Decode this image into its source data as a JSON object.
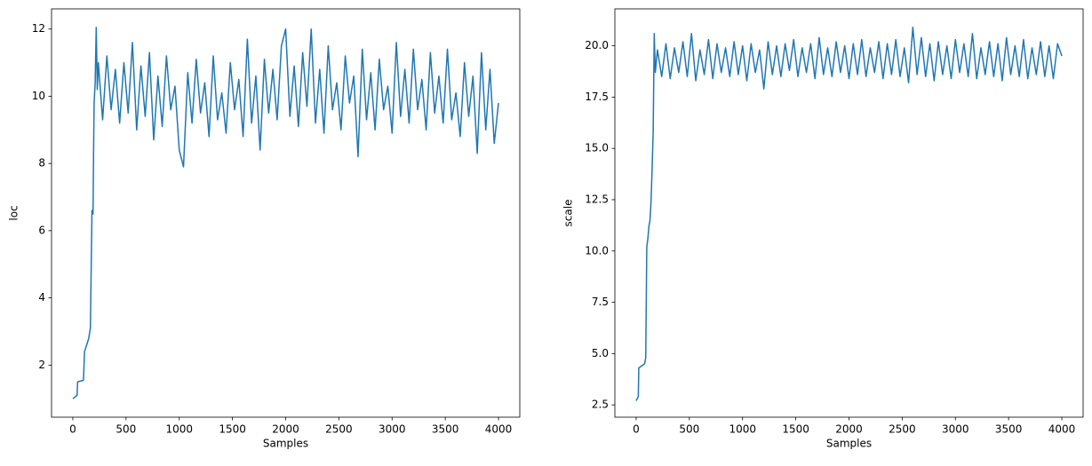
{
  "chart_data": [
    {
      "type": "line",
      "x_label": "Samples",
      "y_label": "loc",
      "xlim": [
        -200,
        4200
      ],
      "ylim": [
        0.45,
        12.6
      ],
      "xticks": [
        0,
        500,
        1000,
        1500,
        2000,
        2500,
        3000,
        3500,
        4000
      ],
      "yticks": [
        2,
        4,
        6,
        8,
        10,
        12
      ],
      "color": "#1f77b4",
      "x": [
        0,
        20,
        40,
        45,
        100,
        110,
        130,
        150,
        165,
        180,
        190,
        195,
        200,
        210,
        220,
        230,
        240,
        280,
        320,
        360,
        400,
        440,
        480,
        520,
        560,
        600,
        640,
        680,
        720,
        760,
        800,
        840,
        880,
        920,
        960,
        1000,
        1040,
        1080,
        1120,
        1160,
        1200,
        1240,
        1280,
        1320,
        1360,
        1400,
        1440,
        1480,
        1520,
        1560,
        1600,
        1640,
        1680,
        1720,
        1760,
        1800,
        1840,
        1880,
        1920,
        1960,
        2000,
        2040,
        2080,
        2120,
        2160,
        2200,
        2240,
        2280,
        2320,
        2360,
        2400,
        2440,
        2480,
        2520,
        2560,
        2600,
        2640,
        2680,
        2720,
        2760,
        2800,
        2840,
        2880,
        2920,
        2960,
        3000,
        3040,
        3080,
        3120,
        3160,
        3200,
        3240,
        3280,
        3320,
        3360,
        3400,
        3440,
        3480,
        3520,
        3560,
        3600,
        3640,
        3680,
        3720,
        3760,
        3800,
        3840,
        3880,
        3920,
        3960,
        4000
      ],
      "values": [
        1.0,
        1.05,
        1.1,
        1.5,
        1.55,
        2.4,
        2.6,
        2.8,
        3.1,
        6.6,
        6.5,
        8.3,
        9.8,
        10.4,
        12.05,
        10.2,
        11.0,
        9.3,
        11.2,
        9.6,
        10.8,
        9.2,
        11.0,
        9.5,
        11.6,
        9.0,
        10.9,
        9.4,
        11.3,
        8.7,
        10.6,
        9.1,
        11.2,
        9.6,
        10.3,
        8.4,
        7.9,
        10.7,
        9.2,
        11.1,
        9.5,
        10.4,
        8.8,
        11.2,
        9.3,
        10.1,
        8.9,
        11.0,
        9.6,
        10.5,
        8.8,
        11.7,
        9.2,
        10.6,
        8.4,
        11.1,
        9.5,
        10.8,
        9.3,
        11.5,
        12.0,
        9.4,
        10.9,
        9.1,
        11.3,
        9.7,
        12.0,
        9.2,
        10.8,
        8.9,
        11.5,
        9.6,
        10.4,
        9.0,
        11.2,
        9.8,
        10.6,
        8.2,
        11.4,
        9.3,
        10.7,
        9.0,
        11.1,
        9.6,
        10.3,
        8.9,
        11.6,
        9.4,
        10.8,
        9.2,
        11.4,
        9.6,
        10.5,
        9.0,
        11.3,
        9.5,
        10.6,
        9.2,
        11.4,
        9.3,
        10.1,
        8.8,
        11.0,
        9.4,
        10.6,
        8.3,
        11.3,
        9.0,
        10.8,
        8.6,
        9.8
      ]
    },
    {
      "type": "line",
      "x_label": "Samples",
      "y_label": "scale",
      "xlim": [
        -200,
        4200
      ],
      "ylim": [
        1.9,
        21.8
      ],
      "xticks": [
        0,
        500,
        1000,
        1500,
        2000,
        2500,
        3000,
        3500,
        4000
      ],
      "yticks": [
        2.5,
        {
          "value": 5,
          "label": "5.0"
        },
        7.5,
        {
          "value": 10,
          "label": "10.0"
        },
        12.5,
        {
          "value": 15,
          "label": "15.0"
        },
        17.5,
        {
          "value": 20,
          "label": "20.0"
        }
      ],
      "color": "#1f77b4",
      "x": [
        0,
        20,
        25,
        80,
        90,
        100,
        110,
        120,
        130,
        140,
        150,
        160,
        170,
        180,
        200,
        240,
        280,
        320,
        360,
        400,
        440,
        480,
        520,
        560,
        600,
        640,
        680,
        720,
        760,
        800,
        840,
        880,
        920,
        960,
        1000,
        1040,
        1080,
        1120,
        1160,
        1200,
        1240,
        1280,
        1320,
        1360,
        1400,
        1440,
        1480,
        1520,
        1560,
        1600,
        1640,
        1680,
        1720,
        1760,
        1800,
        1840,
        1880,
        1920,
        1960,
        2000,
        2040,
        2080,
        2120,
        2160,
        2200,
        2240,
        2280,
        2320,
        2360,
        2400,
        2440,
        2480,
        2520,
        2560,
        2600,
        2640,
        2680,
        2720,
        2760,
        2800,
        2840,
        2880,
        2920,
        2960,
        3000,
        3040,
        3080,
        3120,
        3160,
        3200,
        3240,
        3280,
        3320,
        3360,
        3400,
        3440,
        3480,
        3520,
        3560,
        3600,
        3640,
        3680,
        3720,
        3760,
        3800,
        3840,
        3880,
        3920,
        3960,
        4000
      ],
      "values": [
        2.7,
        2.9,
        4.3,
        4.5,
        4.8,
        10.2,
        10.6,
        11.2,
        11.5,
        12.4,
        14.0,
        15.8,
        20.6,
        18.7,
        19.8,
        18.5,
        20.1,
        18.4,
        19.9,
        18.7,
        20.2,
        18.5,
        20.6,
        18.3,
        19.8,
        18.6,
        20.3,
        18.4,
        20.1,
        18.7,
        19.9,
        18.5,
        20.2,
        18.6,
        20.0,
        18.3,
        20.1,
        18.7,
        19.8,
        17.9,
        20.2,
        18.6,
        20.0,
        18.5,
        20.1,
        18.8,
        20.3,
        18.5,
        19.9,
        18.7,
        20.1,
        18.4,
        20.4,
        18.6,
        19.9,
        18.5,
        20.2,
        18.7,
        20.0,
        18.4,
        20.1,
        18.6,
        20.3,
        18.5,
        19.9,
        18.7,
        20.2,
        18.4,
        20.1,
        18.6,
        20.3,
        18.5,
        19.9,
        18.2,
        20.9,
        18.6,
        20.4,
        18.5,
        20.1,
        18.3,
        20.2,
        18.6,
        20.0,
        18.4,
        20.3,
        18.7,
        20.1,
        18.5,
        20.6,
        18.4,
        19.9,
        18.6,
        20.2,
        18.5,
        20.1,
        18.3,
        20.4,
        18.6,
        20.0,
        18.5,
        20.3,
        18.4,
        19.9,
        18.6,
        20.2,
        18.5,
        20.0,
        18.4,
        20.1,
        19.5
      ]
    }
  ]
}
